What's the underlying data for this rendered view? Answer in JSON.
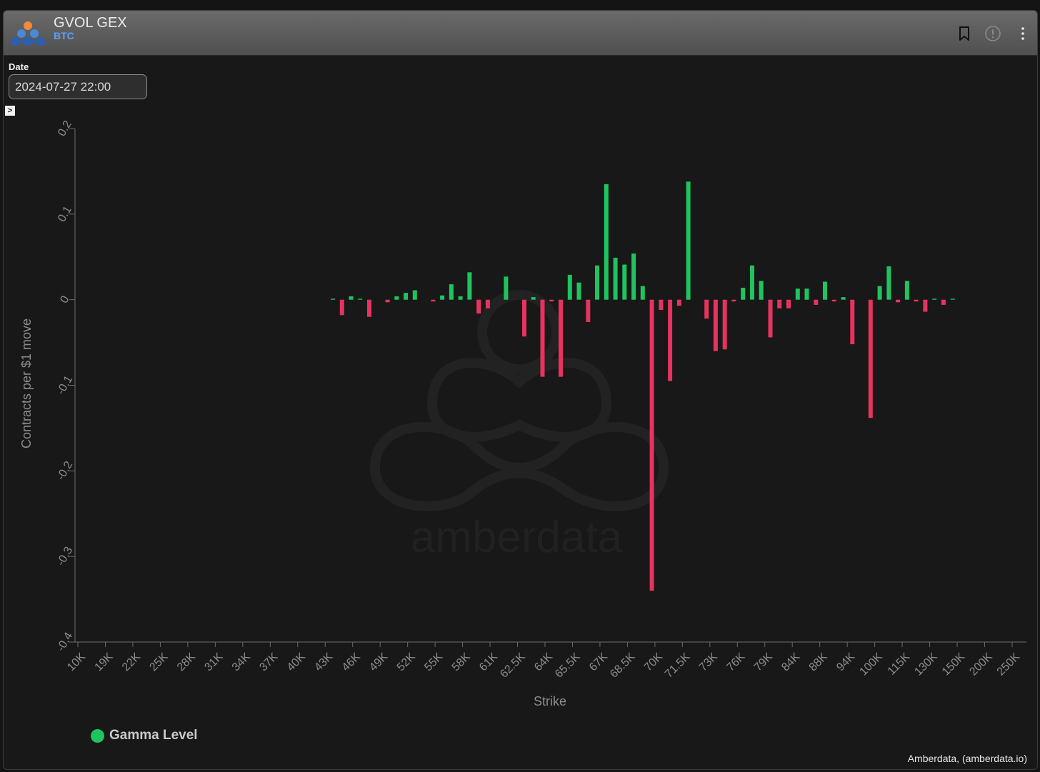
{
  "widget": {
    "title": "GVOL GEX",
    "subtitle": "BTC",
    "icons": [
      "bookmark-icon",
      "alert-circle-icon",
      "more-vertical-icon"
    ]
  },
  "date_filter": {
    "label": "Date",
    "value": "2024-07-27 22:00"
  },
  "expander": {
    "glyph": ">"
  },
  "watermark": "amberdata",
  "credit": "Amberdata, (amberdata.io)",
  "legend": {
    "label": "Gamma Level"
  },
  "colors": {
    "positive": "#1fc45f",
    "negative": "#e6335f",
    "axis": "#6b6b6b",
    "text": "#8d8d8d"
  },
  "chart_data": {
    "type": "bar",
    "xlabel": "Strike",
    "ylabel": "Contracts per $1 move",
    "ylim": [
      -0.4,
      0.2
    ],
    "yticks": [
      "0.2",
      "0.1",
      "0",
      "-0.1",
      "-0.2",
      "-0.3",
      "-0.4"
    ],
    "xticks": [
      "10K",
      "19K",
      "22K",
      "25K",
      "28K",
      "31K",
      "34K",
      "37K",
      "40K",
      "43K",
      "46K",
      "49K",
      "52K",
      "55K",
      "58K",
      "61K",
      "62.5K",
      "64K",
      "65.5K",
      "67K",
      "68.5K",
      "70K",
      "71.5K",
      "73K",
      "76K",
      "79K",
      "84K",
      "88K",
      "94K",
      "100K",
      "115K",
      "130K",
      "150K",
      "200K",
      "250K"
    ],
    "values": [
      0.001,
      -0.018,
      0.004,
      0.001,
      -0.02,
      0,
      -0.003,
      0.004,
      0.008,
      0.011,
      0,
      -0.002,
      0.005,
      0.018,
      0.004,
      0.032,
      -0.016,
      -0.01,
      0,
      0.027,
      0,
      -0.043,
      0.003,
      -0.09,
      -0.002,
      -0.09,
      0.029,
      0.02,
      -0.026,
      0.04,
      0.135,
      0.049,
      0.041,
      0.054,
      0.016,
      -0.34,
      -0.012,
      -0.095,
      -0.007,
      0.138,
      0,
      -0.022,
      -0.06,
      -0.058,
      -0.002,
      0.014,
      0.04,
      0.022,
      -0.044,
      -0.01,
      -0.01,
      0.013,
      0.013,
      -0.006,
      0.021,
      -0.002,
      0.003,
      -0.052,
      0,
      -0.138,
      0.016,
      0.039,
      -0.003,
      0.022,
      -0.002,
      -0.014,
      0.001,
      -0.006,
      0.001
    ],
    "legend": {
      "label": "Gamma Level",
      "position": "bottom-left"
    },
    "grid": false
  }
}
